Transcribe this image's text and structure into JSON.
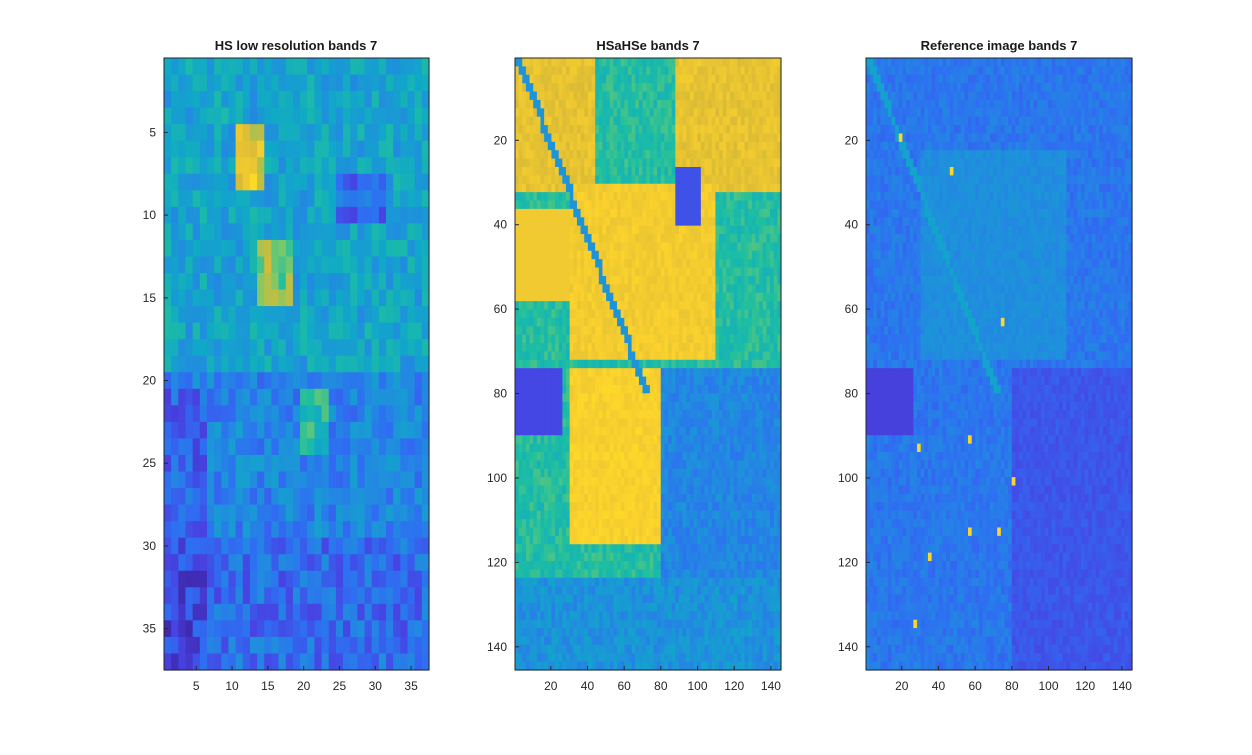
{
  "figure": {
    "background": "#ffffff",
    "colormap": "parula",
    "colormap_stops": [
      "#3e26a8",
      "#4743e3",
      "#2e6ff2",
      "#1f90dc",
      "#10a8c8",
      "#1ebfa0",
      "#7ac96a",
      "#d9ba36",
      "#fcd22d",
      "#f9fb0e"
    ]
  },
  "chart_data": [
    {
      "type": "heatmap",
      "title": "HS low resolution bands 7",
      "xlabel": "",
      "ylabel": "",
      "xlim": [
        0.5,
        37.5
      ],
      "ylim": [
        37.5,
        0.5
      ],
      "xticks": [
        5,
        10,
        15,
        20,
        25,
        30,
        35
      ],
      "yticks": [
        5,
        10,
        15,
        20,
        25,
        30,
        35
      ],
      "grid_size": [
        37,
        37
      ],
      "intensity": "mostly mid-range blue/teal with bright yellow patches near rows 5-8 and cols 12-14, darker blue lower region",
      "dominant_levels": [
        0.25,
        0.55,
        0.9
      ]
    },
    {
      "type": "heatmap",
      "title": "HSaHSe bands 7",
      "xlabel": "",
      "ylabel": "",
      "xlim": [
        0.5,
        145.5
      ],
      "ylim": [
        145.5,
        0.5
      ],
      "xticks": [
        20,
        40,
        60,
        80,
        100,
        120,
        140
      ],
      "yticks": [
        20,
        40,
        60,
        80,
        100,
        120,
        140
      ],
      "grid_size": [
        145,
        145
      ],
      "intensity": "large bright yellow fields in upper and central area, diagonal road, darker blue lower right",
      "dominant_levels": [
        0.2,
        0.5,
        0.85
      ]
    },
    {
      "type": "heatmap",
      "title": "Reference image bands 7",
      "xlabel": "",
      "ylabel": "",
      "xlim": [
        0.5,
        145.5
      ],
      "ylim": [
        145.5,
        0.5
      ],
      "xticks": [
        20,
        40,
        60,
        80,
        100,
        120,
        140
      ],
      "yticks": [
        20,
        40,
        60,
        80,
        100,
        120,
        140
      ],
      "grid_size": [
        145,
        145
      ],
      "intensity": "predominantly dark-to-mid blue with few bright points, diagonal road visible",
      "dominant_levels": [
        0.15,
        0.3,
        0.45
      ]
    }
  ]
}
